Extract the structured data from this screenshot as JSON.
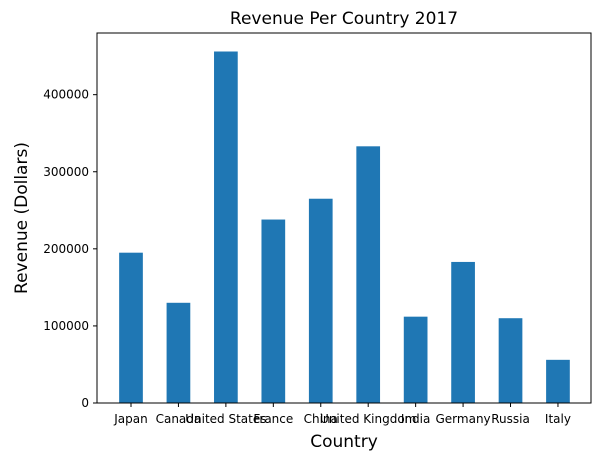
{
  "chart_data": {
    "type": "bar",
    "title": "Revenue Per Country 2017",
    "xlabel": "Country",
    "ylabel": "Revenue (Dollars)",
    "categories": [
      "Japan",
      "Canada",
      "United States",
      "France",
      "China",
      "United Kingdom",
      "India",
      "Germany",
      "Russia",
      "Italy"
    ],
    "values": [
      195000,
      130000,
      456000,
      238000,
      265000,
      333000,
      112000,
      183000,
      110000,
      56000
    ],
    "yticks": [
      "0",
      "100000",
      "200000",
      "300000",
      "400000"
    ],
    "ylim": [
      0,
      480000
    ],
    "grid": false,
    "bar_color": "#1f77b4"
  }
}
